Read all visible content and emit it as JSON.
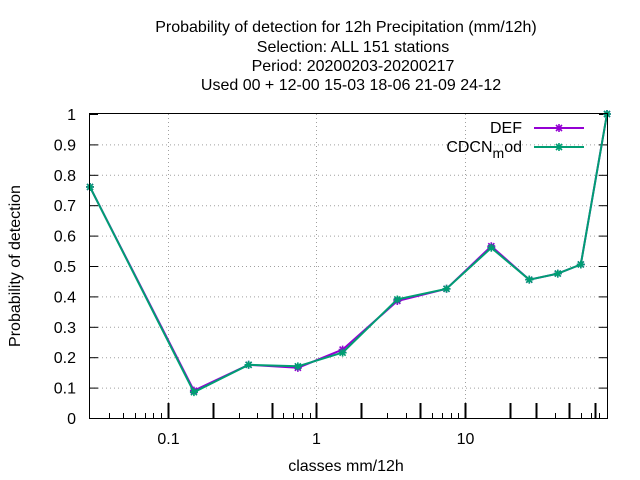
{
  "chart_data": {
    "type": "line",
    "title_lines": [
      "Probability of detection  for 12h Precipitation (mm/12h)",
      "Selection: ALL    151 stations",
      "Period: 20200203-20200217",
      "Used  00 + 12-00 15-03 18-06 21-09 24-12"
    ],
    "xlabel": "classes mm/12h",
    "ylabel": "Probability of detection",
    "x_scale": "log",
    "xlim": [
      0.03,
      90
    ],
    "ylim": [
      0,
      1
    ],
    "grid": true,
    "legend_position": "top-right",
    "x_tick_labels": [
      "0.1",
      "1",
      "10"
    ],
    "x_ticks": [
      0.1,
      1,
      10
    ],
    "y_tick_labels": [
      "0",
      "0.1",
      "0.2",
      "0.3",
      "0.4",
      "0.5",
      "0.6",
      "0.7",
      "0.8",
      "0.9",
      "1"
    ],
    "y_ticks": [
      0,
      0.1,
      0.2,
      0.3,
      0.4,
      0.5,
      0.6,
      0.7,
      0.8,
      0.9,
      1
    ],
    "class_ticks": [
      0.2,
      0.5,
      2,
      5,
      20,
      30,
      50,
      75
    ],
    "x": [
      0.03,
      0.15,
      0.35,
      0.75,
      1.5,
      3.5,
      7.5,
      15,
      27,
      42,
      60,
      90
    ],
    "series": [
      {
        "name": "DEF",
        "color": "#9400d3",
        "values": [
          0.76,
          0.09,
          0.175,
          0.165,
          0.225,
          0.385,
          0.425,
          0.565,
          0.455,
          0.475,
          0.505,
          1.0
        ]
      },
      {
        "name": "CDCN_mod",
        "label_main": "CDCN",
        "label_sub": "m",
        "label_rest": "od",
        "color": "#009e73",
        "values": [
          0.76,
          0.085,
          0.175,
          0.17,
          0.215,
          0.39,
          0.425,
          0.56,
          0.455,
          0.475,
          0.505,
          1.0
        ]
      }
    ]
  }
}
